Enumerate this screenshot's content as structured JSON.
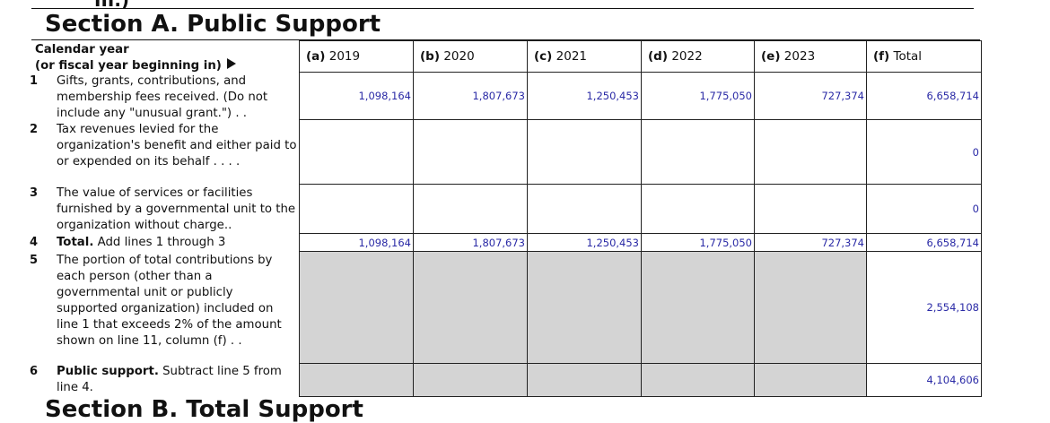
{
  "header": {
    "fragment": "III.)",
    "title": "Section A. Public Support",
    "next_title": "Section B. Total Support"
  },
  "table": {
    "label_header": {
      "line1": "Calendar year",
      "line2": "(or fiscal year beginning in)"
    },
    "columns": [
      {
        "letter": "(a)",
        "year": "2019"
      },
      {
        "letter": "(b)",
        "year": "2020"
      },
      {
        "letter": "(c)",
        "year": "2021"
      },
      {
        "letter": "(d)",
        "year": "2022"
      },
      {
        "letter": "(e)",
        "year": "2023"
      },
      {
        "letter": "(f)",
        "year": "Total"
      }
    ],
    "rows": [
      {
        "number": "1",
        "text": "Gifts, grants, contributions, and membership fees received. (Do not include any \"unusual grant.\") . .",
        "cells": [
          "1,098,164",
          "1,807,673",
          "1,250,453",
          "1,775,050",
          "727,374",
          "6,658,714"
        ],
        "shaded": false
      },
      {
        "number": "2",
        "text": "Tax revenues levied for the organization's benefit and either paid to or expended on its behalf . . . .",
        "cells": [
          null,
          null,
          null,
          null,
          null,
          "0"
        ],
        "shaded": false
      },
      {
        "number": "3",
        "text": "The value of services or facilities furnished by a governmental unit to the organization without charge..",
        "cells": [
          null,
          null,
          null,
          null,
          null,
          "0"
        ],
        "shaded": false
      },
      {
        "number": "4",
        "bold": "Total.",
        "text": "Add lines 1 through 3",
        "cells": [
          "1,098,164",
          "1,807,673",
          "1,250,453",
          "1,775,050",
          "727,374",
          "6,658,714"
        ],
        "shaded": false
      },
      {
        "number": "5",
        "text": "The portion of total contributions by each person (other than a governmental unit or publicly supported organization) included on line 1 that exceeds 2% of the amount shown on line 11, column (f) . .",
        "cells": [
          null,
          null,
          null,
          null,
          null,
          "2,554,108"
        ],
        "shaded": true
      },
      {
        "number": "6",
        "bold": "Public support.",
        "text": "Subtract line 5 from line 4.",
        "cells": [
          null,
          null,
          null,
          null,
          null,
          "4,104,606"
        ],
        "shaded": true
      }
    ]
  }
}
